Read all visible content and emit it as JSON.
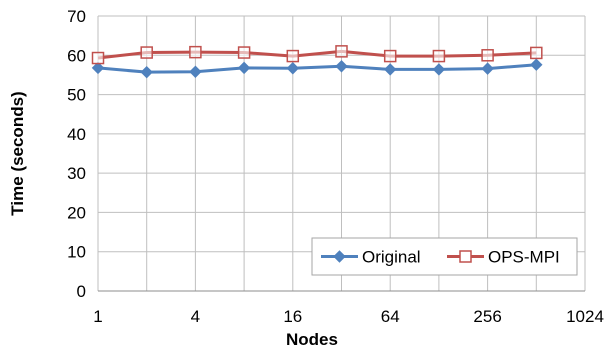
{
  "chart_data": {
    "type": "line",
    "title": "",
    "xlabel": "Nodes",
    "ylabel": "Time (seconds)",
    "x_scale": "log2",
    "x_ticks": [
      1,
      4,
      16,
      64,
      256,
      1024
    ],
    "x_tick_labels": [
      "1",
      "4",
      "16",
      "64",
      "256",
      "1024"
    ],
    "xlim": [
      1,
      1024
    ],
    "y_ticks": [
      0,
      10,
      20,
      30,
      40,
      50,
      60,
      70
    ],
    "y_tick_labels": [
      "0",
      "10",
      "20",
      "30",
      "40",
      "50",
      "60",
      "70"
    ],
    "ylim": [
      0,
      70
    ],
    "grid": true,
    "legend_position": "bottom-right",
    "x": [
      1,
      2,
      4,
      8,
      16,
      32,
      64,
      128,
      256,
      512
    ],
    "series": [
      {
        "name": "Original",
        "color": "#4F81BD",
        "marker": "diamond",
        "values": [
          56.8,
          55.7,
          55.8,
          56.8,
          56.7,
          57.2,
          56.4,
          56.4,
          56.6,
          57.6
        ]
      },
      {
        "name": "OPS-MPI",
        "color": "#C0504D",
        "marker": "square-open",
        "values": [
          59.3,
          60.7,
          60.8,
          60.7,
          59.8,
          61.0,
          59.8,
          59.8,
          60.0,
          60.6
        ]
      }
    ]
  }
}
